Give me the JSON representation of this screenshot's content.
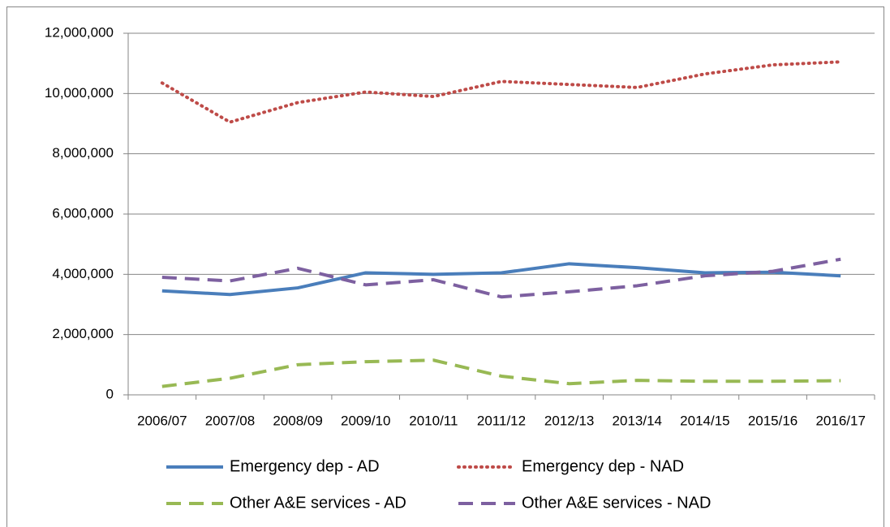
{
  "chart_data": {
    "type": "line",
    "categories": [
      "2006/07",
      "2007/08",
      "2008/09",
      "2009/10",
      "2010/11",
      "2011/12",
      "2012/13",
      "2013/14",
      "2014/15",
      "2015/16",
      "2016/17"
    ],
    "series": [
      {
        "name": "Emergency dep - AD",
        "color": "#4a7ebb",
        "style": "solid",
        "values": [
          3450000,
          3330000,
          3550000,
          4050000,
          4000000,
          4050000,
          4350000,
          4220000,
          4050000,
          4070000,
          3950000
        ]
      },
      {
        "name": "Emergency dep - NAD",
        "color": "#be4b48",
        "style": "dotted",
        "values": [
          10350000,
          9050000,
          9700000,
          10050000,
          9900000,
          10400000,
          10300000,
          10200000,
          10650000,
          10950000,
          11050000
        ]
      },
      {
        "name": "Other A&E services - AD",
        "color": "#98b954",
        "style": "dashed",
        "values": [
          280000,
          550000,
          1000000,
          1100000,
          1150000,
          620000,
          370000,
          480000,
          450000,
          450000,
          470000
        ]
      },
      {
        "name": "Other A&E services - NAD",
        "color": "#7d60a0",
        "style": "dashed",
        "values": [
          3900000,
          3780000,
          4200000,
          3650000,
          3820000,
          3250000,
          3420000,
          3620000,
          3950000,
          4100000,
          4500000
        ]
      }
    ],
    "ylim": [
      0,
      12000000
    ],
    "yticks": [
      0,
      {
        "value": 2000000,
        "label": "2,000,000"
      },
      {
        "value": 4000000,
        "label": "4,000,000"
      },
      {
        "value": 6000000,
        "label": "6,000,000"
      },
      {
        "value": 8000000,
        "label": "8,000,000"
      },
      {
        "value": 10000000,
        "label": "10,000,000"
      },
      {
        "value": 12000000,
        "label": "12,000,000"
      }
    ],
    "grid": true
  }
}
